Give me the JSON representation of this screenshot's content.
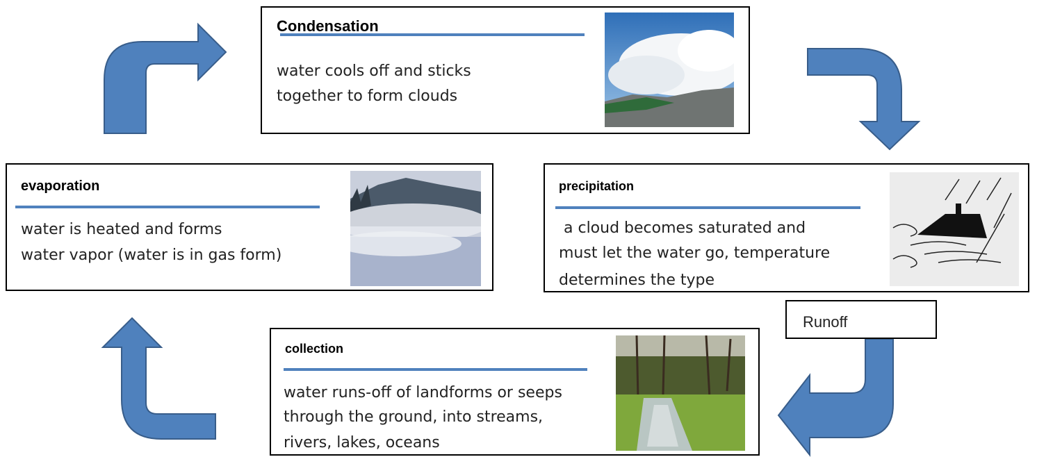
{
  "nodes": [
    {
      "title": "Condensation",
      "lines": [
        "water cools off and sticks",
        "together to form clouds"
      ]
    },
    {
      "title": "evaporation",
      "lines": [
        "water is heated and forms",
        "water vapor (water is in gas form)"
      ]
    },
    {
      "title": "precipitation",
      "lines": [
        " a cloud becomes saturated and",
        "must let the water go, temperature",
        "determines the type"
      ]
    },
    {
      "title": "collection",
      "lines": [
        "water runs-off of landforms or seeps",
        "through the ground, into streams,",
        "rivers, lakes, oceans"
      ]
    }
  ],
  "runoff_label": "Runoff"
}
